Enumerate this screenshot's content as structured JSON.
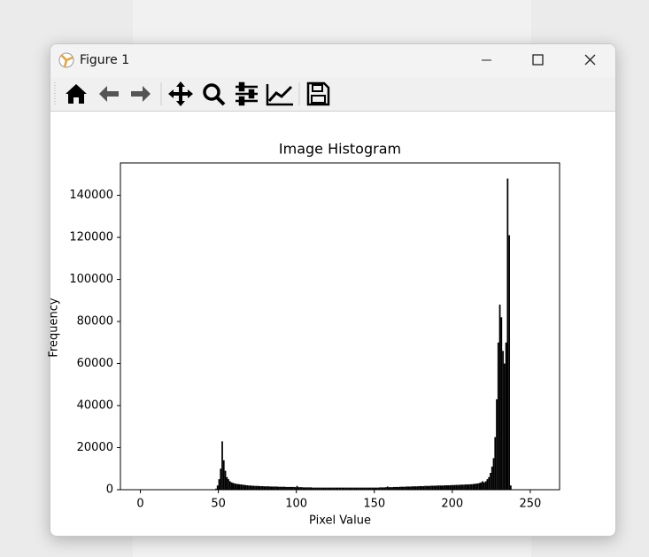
{
  "window": {
    "title": "Figure 1"
  },
  "chart_data": {
    "type": "histogram",
    "title": "Image Histogram",
    "x_label": "Pixel Value",
    "y_label": "Frequency",
    "color": "#000000",
    "bins": [
      0,
      1,
      2,
      3,
      4,
      5,
      6,
      7,
      8,
      9,
      10,
      11,
      12,
      13,
      14,
      15,
      16,
      17,
      18,
      19,
      20,
      21,
      22,
      23,
      24,
      25,
      26,
      27,
      28,
      29,
      30,
      31,
      32,
      33,
      34,
      35,
      36,
      37,
      38,
      39,
      40,
      41,
      42,
      43,
      44,
      45,
      46,
      47,
      48,
      49,
      50,
      51,
      52,
      53,
      54,
      55,
      56,
      57,
      58,
      59,
      60,
      61,
      62,
      63,
      64,
      65,
      66,
      67,
      68,
      69,
      70,
      71,
      72,
      73,
      74,
      75,
      76,
      77,
      78,
      79,
      80,
      81,
      82,
      83,
      84,
      85,
      86,
      87,
      88,
      89,
      90,
      91,
      92,
      93,
      94,
      95,
      96,
      97,
      98,
      99,
      100,
      101,
      102,
      103,
      104,
      105,
      106,
      107,
      108,
      109,
      110,
      111,
      112,
      113,
      114,
      115,
      116,
      117,
      118,
      119,
      120,
      121,
      122,
      123,
      124,
      125,
      126,
      127,
      128,
      129,
      130,
      131,
      132,
      133,
      134,
      135,
      136,
      137,
      138,
      139,
      140,
      141,
      142,
      143,
      144,
      145,
      146,
      147,
      148,
      149,
      150,
      151,
      152,
      153,
      154,
      155,
      156,
      157,
      158,
      159,
      160,
      161,
      162,
      163,
      164,
      165,
      166,
      167,
      168,
      169,
      170,
      171,
      172,
      173,
      174,
      175,
      176,
      177,
      178,
      179,
      180,
      181,
      182,
      183,
      184,
      185,
      186,
      187,
      188,
      189,
      190,
      191,
      192,
      193,
      194,
      195,
      196,
      197,
      198,
      199,
      200,
      201,
      202,
      203,
      204,
      205,
      206,
      207,
      208,
      209,
      210,
      211,
      212,
      213,
      214,
      215,
      216,
      217,
      218,
      219,
      220,
      221,
      222,
      223,
      224,
      225,
      226,
      227,
      228,
      229,
      230,
      231,
      232,
      233,
      234,
      235,
      236,
      237,
      238,
      239,
      240,
      241,
      242,
      243,
      244,
      245,
      246,
      247,
      248,
      249,
      250,
      251,
      252,
      253,
      254,
      255,
      256
    ],
    "values": [
      0,
      0,
      0,
      0,
      0,
      0,
      0,
      0,
      0,
      0,
      0,
      0,
      0,
      0,
      0,
      0,
      0,
      0,
      0,
      0,
      0,
      0,
      0,
      0,
      0,
      0,
      0,
      0,
      0,
      0,
      0,
      0,
      0,
      0,
      0,
      0,
      0,
      0,
      0,
      0,
      0,
      0,
      0,
      0,
      0,
      0,
      0,
      0,
      500,
      2000,
      5000,
      10000,
      23000,
      14000,
      9000,
      6000,
      5000,
      4000,
      3500,
      3200,
      3000,
      2800,
      2700,
      2600,
      2500,
      2400,
      2300,
      2200,
      2100,
      2000,
      2000,
      1900,
      1900,
      1800,
      1800,
      1800,
      1700,
      1700,
      1700,
      1600,
      1600,
      1600,
      1600,
      1500,
      1500,
      1500,
      1500,
      1500,
      1400,
      1400,
      1400,
      1400,
      1400,
      1300,
      1300,
      1300,
      1300,
      1300,
      1300,
      1200,
      1800,
      1200,
      1200,
      1200,
      1100,
      1100,
      1100,
      1100,
      1100,
      1100,
      1000,
      1000,
      1000,
      1000,
      1000,
      1000,
      1000,
      1000,
      1000,
      1000,
      1000,
      1000,
      1000,
      1000,
      1000,
      1000,
      1000,
      1000,
      1000,
      1000,
      1000,
      1000,
      1000,
      1000,
      1000,
      1000,
      1000,
      1000,
      1000,
      1000,
      1000,
      1000,
      1000,
      1000,
      1000,
      1000,
      1000,
      1000,
      1000,
      1000,
      1000,
      1000,
      1000,
      1100,
      1100,
      1100,
      1100,
      1200,
      1500,
      1200,
      1200,
      1200,
      1300,
      1300,
      1300,
      1300,
      1400,
      1400,
      1400,
      1400,
      1500,
      1500,
      1500,
      1500,
      1600,
      1600,
      1600,
      1600,
      1700,
      1700,
      1700,
      1700,
      1800,
      1800,
      1800,
      1800,
      1900,
      1900,
      1900,
      1900,
      2000,
      2000,
      2000,
      2000,
      2000,
      2100,
      2100,
      2100,
      2100,
      2200,
      2200,
      2200,
      2300,
      2300,
      2300,
      2400,
      2400,
      2400,
      2500,
      2500,
      2500,
      2600,
      2600,
      2700,
      2800,
      2900,
      3000,
      3200,
      3500,
      4000,
      3500,
      4000,
      5000,
      6000,
      8000,
      11000,
      15000,
      25000,
      43000,
      70000,
      88000,
      82000,
      66000,
      60000,
      70000,
      148000,
      121000,
      2000,
      0,
      0,
      0,
      0,
      0,
      0,
      0,
      0,
      0,
      0,
      0,
      0,
      0,
      0,
      0,
      0,
      0,
      0
    ],
    "xlim": [
      -12.8,
      268.8
    ],
    "xticks": [
      0,
      50,
      100,
      150,
      200,
      250
    ],
    "ylim": [
      0,
      155400
    ],
    "yticks": [
      0,
      20000,
      40000,
      60000,
      80000,
      100000,
      120000,
      140000
    ]
  }
}
